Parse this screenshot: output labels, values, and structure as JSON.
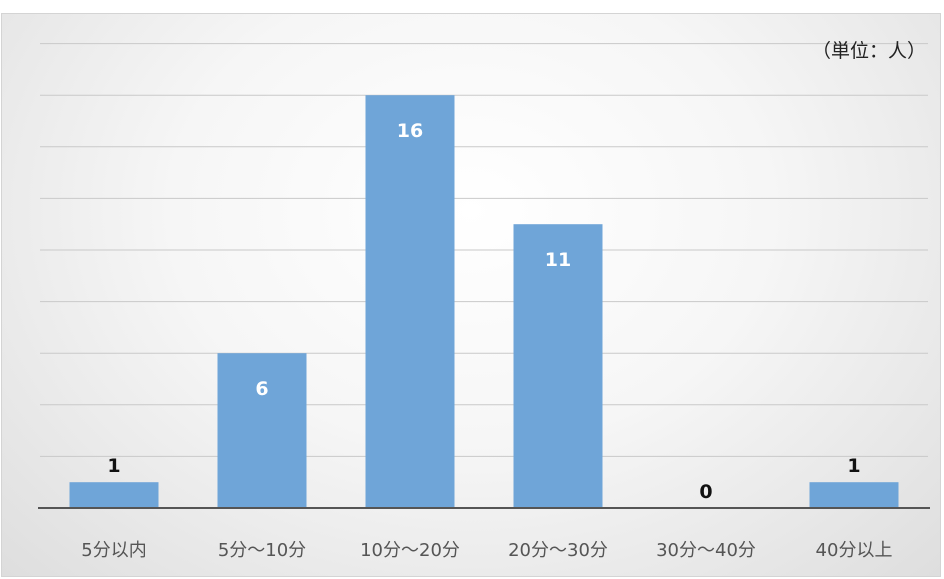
{
  "chart_data": {
    "type": "bar",
    "unit_label": "（単位：人）",
    "categories": [
      "5分以内",
      "5分～10分",
      "10分～20分",
      "20分～30分",
      "30分～40分",
      "40分以上"
    ],
    "values": [
      1,
      6,
      16,
      11,
      0,
      1
    ],
    "ylim": [
      0,
      18
    ],
    "grid": true,
    "bar_color": "#6fa5d8",
    "label_color_inside": "#ffffff",
    "label_color_outside": "#111111",
    "gridline_color": "#c9c9c9",
    "axis_color": "#555555"
  }
}
